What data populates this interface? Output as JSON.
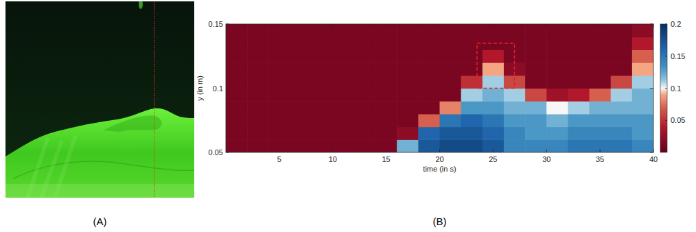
{
  "panel_labels": [
    "(A)",
    "(B)"
  ],
  "chart_data": {
    "type": "heatmap",
    "xlabel": "time (in s)",
    "ylabel": "y (in m)",
    "xlim": [
      0,
      40
    ],
    "xticks": [
      5,
      10,
      15,
      20,
      25,
      30,
      35,
      40
    ],
    "ylim": [
      0.05,
      0.15
    ],
    "yticks": [
      0.05,
      0.1,
      0.15
    ],
    "cell_x": [
      1,
      3,
      5,
      7,
      9,
      11,
      13,
      15,
      17,
      19,
      21,
      23,
      25,
      27,
      29,
      31,
      33,
      35,
      37,
      39
    ],
    "cell_y": [
      0.055,
      0.065,
      0.075,
      0.085,
      0.095,
      0.105,
      0.115,
      0.125,
      0.135,
      0.145
    ],
    "cells": [
      [
        0.01,
        0.01,
        0.01,
        0.01,
        0.01,
        0.01,
        0.01,
        0.01,
        0.12,
        0.17,
        0.18,
        0.18,
        0.17,
        0.14,
        0.14,
        0.14,
        0.15,
        0.15,
        0.15,
        0.14
      ],
      [
        0.01,
        0.01,
        0.01,
        0.01,
        0.01,
        0.01,
        0.01,
        0.01,
        0.02,
        0.16,
        0.17,
        0.17,
        0.16,
        0.14,
        0.13,
        0.13,
        0.14,
        0.14,
        0.14,
        0.13
      ],
      [
        0.01,
        0.01,
        0.01,
        0.01,
        0.01,
        0.01,
        0.01,
        0.01,
        0.01,
        0.07,
        0.15,
        0.16,
        0.15,
        0.13,
        0.13,
        0.12,
        0.13,
        0.13,
        0.13,
        0.13
      ],
      [
        0.01,
        0.01,
        0.01,
        0.01,
        0.01,
        0.01,
        0.01,
        0.01,
        0.01,
        0.01,
        0.08,
        0.13,
        0.13,
        0.12,
        0.12,
        0.1,
        0.11,
        0.12,
        0.12,
        0.12
      ],
      [
        0.01,
        0.01,
        0.01,
        0.01,
        0.01,
        0.01,
        0.01,
        0.01,
        0.01,
        0.01,
        0.01,
        0.11,
        0.12,
        0.11,
        0.06,
        0.03,
        0.04,
        0.07,
        0.11,
        0.12
      ],
      [
        0.01,
        0.01,
        0.01,
        0.01,
        0.01,
        0.01,
        0.01,
        0.01,
        0.01,
        0.01,
        0.01,
        0.05,
        0.11,
        0.06,
        0.01,
        0.01,
        0.01,
        0.01,
        0.06,
        0.11
      ],
      [
        0.01,
        0.01,
        0.01,
        0.01,
        0.01,
        0.01,
        0.01,
        0.01,
        0.01,
        0.01,
        0.01,
        0.01,
        0.09,
        0.02,
        0.01,
        0.01,
        0.01,
        0.01,
        0.01,
        0.09
      ],
      [
        0.01,
        0.01,
        0.01,
        0.01,
        0.01,
        0.01,
        0.01,
        0.01,
        0.01,
        0.01,
        0.01,
        0.01,
        0.04,
        0.01,
        0.01,
        0.01,
        0.01,
        0.01,
        0.01,
        0.07
      ],
      [
        0.01,
        0.01,
        0.01,
        0.01,
        0.01,
        0.01,
        0.01,
        0.01,
        0.01,
        0.01,
        0.01,
        0.01,
        0.01,
        0.01,
        0.01,
        0.01,
        0.01,
        0.01,
        0.01,
        0.04
      ],
      [
        0.01,
        0.01,
        0.01,
        0.01,
        0.01,
        0.01,
        0.01,
        0.01,
        0.01,
        0.01,
        0.01,
        0.01,
        0.01,
        0.01,
        0.01,
        0.01,
        0.01,
        0.01,
        0.01,
        0.02
      ]
    ],
    "colorbar_lim": [
      0,
      0.2
    ],
    "colorbar_ticks": [
      0.05,
      0.1,
      0.15,
      0.2
    ],
    "highlight_box": {
      "x": [
        23.5,
        27
      ],
      "y": [
        0.1,
        0.135
      ]
    }
  }
}
